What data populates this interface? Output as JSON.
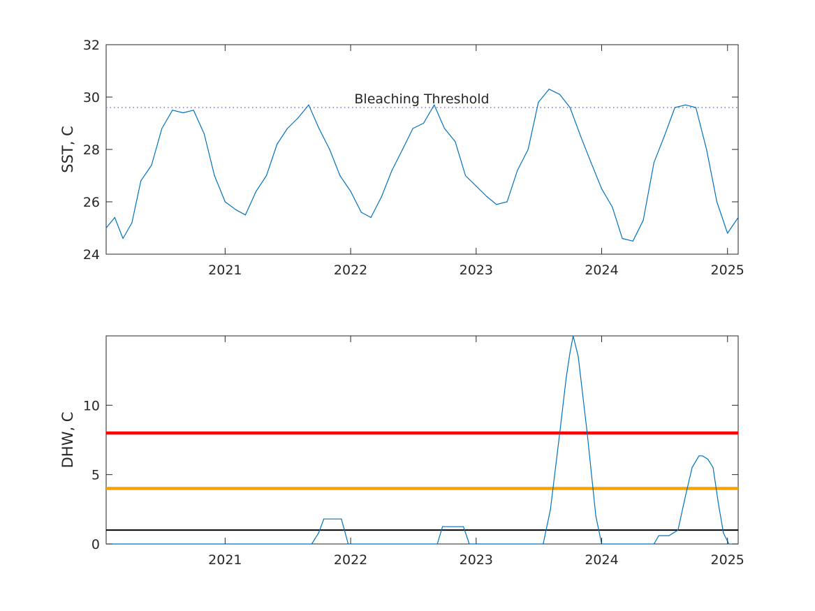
{
  "chart_data": [
    {
      "type": "line",
      "xlabel": "",
      "ylabel": "SST, C",
      "xlim": [
        "2020-01-21",
        "2025-02-01"
      ],
      "ylim": [
        24,
        32
      ],
      "x_ticks": [
        "2021-01-01",
        "2022-01-01",
        "2023-01-01",
        "2024-01-01",
        "2025-01-01"
      ],
      "x_tick_labels": [
        "2021",
        "2022",
        "2023",
        "2024",
        "2025"
      ],
      "y_ticks": [
        24,
        26,
        28,
        30,
        32
      ],
      "y_tick_labels": [
        "24",
        "26",
        "28",
        "30",
        "32"
      ],
      "grid": false,
      "series_color": "#0072BD",
      "threshold": {
        "label": "Bleaching Threshold",
        "value": 29.6,
        "style": "dotted",
        "color": "#7E6FD8"
      },
      "x": [
        "2020-01-21",
        "2020-02-15",
        "2020-03-10",
        "2020-04-05",
        "2020-05-01",
        "2020-06-01",
        "2020-07-01",
        "2020-08-01",
        "2020-09-01",
        "2020-10-01",
        "2020-11-01",
        "2020-12-01",
        "2021-01-01",
        "2021-02-01",
        "2021-03-01",
        "2021-04-01",
        "2021-05-01",
        "2021-06-01",
        "2021-07-01",
        "2021-08-01",
        "2021-09-01",
        "2021-10-01",
        "2021-11-01",
        "2021-12-01",
        "2022-01-01",
        "2022-02-01",
        "2022-03-01",
        "2022-04-01",
        "2022-05-01",
        "2022-06-01",
        "2022-07-01",
        "2022-08-01",
        "2022-09-01",
        "2022-10-01",
        "2022-11-01",
        "2022-12-01",
        "2023-01-01",
        "2023-02-01",
        "2023-03-01",
        "2023-04-01",
        "2023-05-01",
        "2023-06-01",
        "2023-07-01",
        "2023-08-01",
        "2023-09-01",
        "2023-10-01",
        "2023-11-01",
        "2023-12-01",
        "2024-01-01",
        "2024-02-01",
        "2024-03-01",
        "2024-04-01",
        "2024-05-01",
        "2024-06-01",
        "2024-07-01",
        "2024-08-01",
        "2024-09-01",
        "2024-10-01",
        "2024-11-01",
        "2024-12-01",
        "2025-01-01",
        "2025-02-01"
      ],
      "values": [
        25.0,
        25.4,
        24.6,
        25.2,
        26.8,
        27.4,
        28.8,
        29.5,
        29.4,
        29.5,
        28.6,
        27.0,
        26.0,
        25.7,
        25.5,
        26.4,
        27.0,
        28.2,
        28.8,
        29.2,
        29.7,
        28.8,
        28.0,
        27.0,
        26.4,
        25.6,
        25.4,
        26.2,
        27.2,
        28.0,
        28.8,
        29.0,
        29.7,
        28.8,
        28.3,
        27.0,
        26.6,
        26.2,
        25.9,
        26.0,
        27.2,
        28.0,
        29.8,
        30.3,
        30.1,
        29.6,
        28.5,
        27.5,
        26.5,
        25.8,
        24.6,
        24.5,
        25.3,
        27.5,
        28.5,
        29.6,
        29.7,
        29.6,
        28.0,
        26.0,
        24.8,
        25.4
      ]
    },
    {
      "type": "line",
      "xlabel": "",
      "ylabel": "DHW, C",
      "xlim": [
        "2020-01-21",
        "2025-02-01"
      ],
      "ylim": [
        0,
        15
      ],
      "x_ticks": [
        "2021-01-01",
        "2022-01-01",
        "2023-01-01",
        "2024-01-01",
        "2025-01-01"
      ],
      "x_tick_labels": [
        "2021",
        "2022",
        "2023",
        "2024",
        "2025"
      ],
      "y_ticks": [
        0,
        5,
        10
      ],
      "y_tick_labels": [
        "0",
        "5",
        "10"
      ],
      "grid": false,
      "series_color": "#0072BD",
      "reference_lines": [
        {
          "value": 8,
          "color": "#FF0000"
        },
        {
          "value": 4,
          "color": "#F5A300"
        },
        {
          "value": 1,
          "color": "#000000"
        }
      ],
      "x": [
        "2020-01-21",
        "2021-09-10",
        "2021-09-30",
        "2021-10-15",
        "2021-12-05",
        "2021-12-25",
        "2022-09-10",
        "2022-09-25",
        "2022-11-25",
        "2022-12-12",
        "2023-07-15",
        "2023-08-05",
        "2023-09-01",
        "2023-09-20",
        "2023-10-01",
        "2023-10-10",
        "2023-10-25",
        "2023-11-20",
        "2023-12-15",
        "2024-01-01",
        "2024-06-01",
        "2024-06-15",
        "2024-07-15",
        "2024-08-10",
        "2024-09-01",
        "2024-09-20",
        "2024-10-10",
        "2024-10-20",
        "2024-11-05",
        "2024-11-20",
        "2024-12-05",
        "2024-12-20",
        "2025-01-05",
        "2025-02-01"
      ],
      "values": [
        0,
        0,
        0.8,
        1.8,
        1.8,
        0,
        0,
        1.25,
        1.25,
        0,
        0,
        2.5,
        8.0,
        12.0,
        13.8,
        15.0,
        13.5,
        8.0,
        2.0,
        0,
        0,
        0.6,
        0.6,
        1.0,
        3.5,
        5.5,
        6.35,
        6.35,
        6.1,
        5.5,
        3.0,
        0.8,
        0,
        0
      ]
    }
  ]
}
